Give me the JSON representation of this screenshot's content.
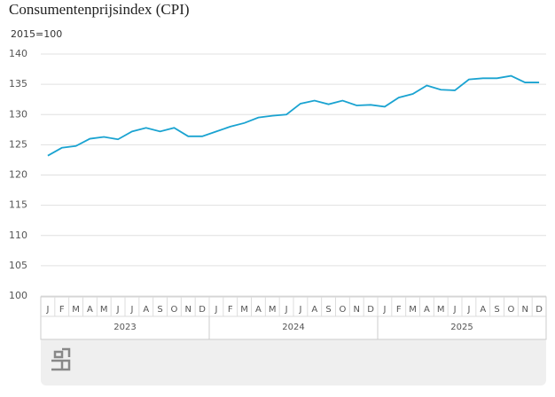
{
  "chart_data": {
    "type": "line",
    "title": "Consumentenprijsindex (CPI)",
    "subtitle": "2015=100",
    "categories": [
      "J",
      "F",
      "M",
      "A",
      "M",
      "J",
      "J",
      "A",
      "S",
      "O",
      "N",
      "D",
      "J",
      "F",
      "M",
      "A",
      "M",
      "J",
      "J",
      "A",
      "S",
      "O",
      "N",
      "D",
      "J",
      "F",
      "M",
      "A",
      "M",
      "J",
      "J",
      "A",
      "S",
      "O",
      "N",
      "D"
    ],
    "category_groups": [
      "2023",
      "2024",
      "2025"
    ],
    "series": [
      {
        "name": "CPI",
        "color": "#1aa3d1",
        "values": [
          123.2,
          124.5,
          124.8,
          126.0,
          126.3,
          125.9,
          127.2,
          127.8,
          127.2,
          127.8,
          126.4,
          126.4,
          127.2,
          128.0,
          128.6,
          129.5,
          129.8,
          130.0,
          131.8,
          132.3,
          131.7,
          132.3,
          131.5,
          131.6,
          131.3,
          132.8,
          133.4,
          134.8,
          134.1,
          134.0,
          135.8,
          136.0,
          136.0,
          136.4,
          135.3,
          135.3
        ]
      }
    ],
    "ylim": [
      100,
      140
    ],
    "yticks": [
      100,
      105,
      110,
      115,
      120,
      125,
      130,
      135,
      140
    ],
    "grid": true
  }
}
